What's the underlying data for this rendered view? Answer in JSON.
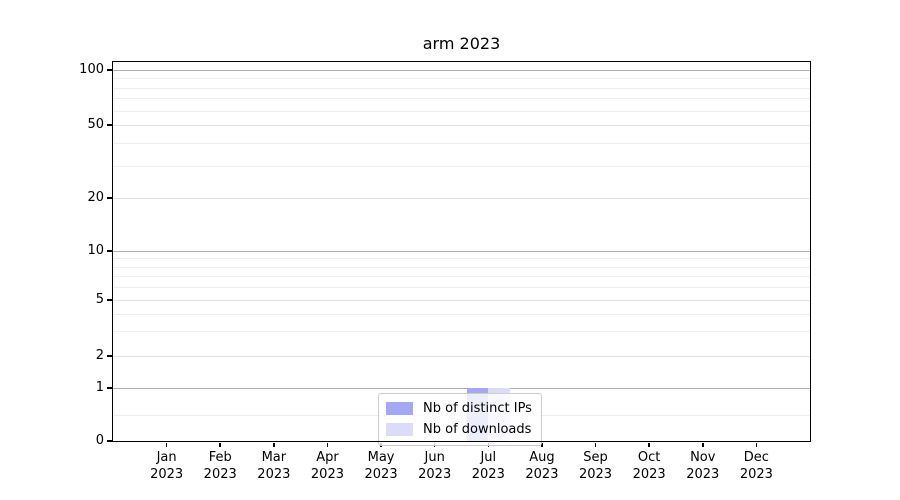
{
  "chart_data": {
    "type": "bar",
    "title": "arm 2023",
    "categories": [
      "Jan",
      "Feb",
      "Mar",
      "Apr",
      "May",
      "Jun",
      "Jul",
      "Aug",
      "Sep",
      "Oct",
      "Nov",
      "Dec"
    ],
    "category_year": "2023",
    "series": [
      {
        "name": "Nb of distinct IPs",
        "color": "#a3a8f0",
        "values": [
          0,
          0,
          0,
          0,
          0,
          0,
          1,
          0,
          0,
          0,
          0,
          0
        ]
      },
      {
        "name": "Nb of downloads",
        "color": "#dbddf8",
        "values": [
          0,
          0,
          0,
          0,
          0,
          0,
          1,
          0,
          0,
          0,
          0,
          0
        ]
      }
    ],
    "xlabel": "",
    "ylabel": "",
    "yscale": "symlog",
    "ylim": [
      0,
      112
    ],
    "yticks": [
      0,
      1,
      2,
      5,
      10,
      20,
      50,
      100
    ],
    "grid": "horizontal major+minor",
    "legend_position": "lower center"
  },
  "legend": {
    "items": [
      {
        "label": "Nb of distinct IPs",
        "color": "#a3a8f0"
      },
      {
        "label": "Nb of downloads",
        "color": "#dbddf8"
      }
    ]
  },
  "colors": {
    "background": "#ffffff",
    "axis": "#000000",
    "grid_strong": "#b0b0b0",
    "grid_light": "#e0e0e0",
    "grid_minor": "#ededed",
    "bar_distinct_ips": "#a3a8f0",
    "bar_downloads": "#dbddf8",
    "legend_border": "#cccccc"
  }
}
